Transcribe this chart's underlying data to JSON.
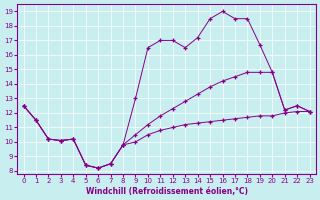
{
  "xlabel": "Windchill (Refroidissement éolien,°C)",
  "background_color": "#c8eef0",
  "line_color": "#880088",
  "xlim": [
    -0.5,
    23.5
  ],
  "ylim": [
    7.8,
    19.5
  ],
  "yticks": [
    8,
    9,
    10,
    11,
    12,
    13,
    14,
    15,
    16,
    17,
    18,
    19
  ],
  "xticks": [
    0,
    1,
    2,
    3,
    4,
    5,
    6,
    7,
    8,
    9,
    10,
    11,
    12,
    13,
    14,
    15,
    16,
    17,
    18,
    19,
    20,
    21,
    22,
    23
  ],
  "line1_x": [
    0,
    1,
    2,
    3,
    4,
    5,
    6,
    7,
    8,
    9,
    10,
    11,
    12,
    13,
    14,
    15,
    16,
    17,
    18,
    19,
    20,
    21,
    22,
    23
  ],
  "line1_y": [
    12.5,
    11.5,
    10.2,
    10.1,
    10.2,
    8.4,
    8.2,
    8.5,
    9.8,
    10.0,
    10.5,
    10.8,
    11.0,
    11.2,
    11.3,
    11.4,
    11.5,
    11.6,
    11.7,
    11.8,
    11.8,
    12.0,
    12.1,
    12.1
  ],
  "line2_x": [
    0,
    1,
    2,
    3,
    4,
    5,
    6,
    7,
    8,
    9,
    10,
    11,
    12,
    13,
    14,
    15,
    16,
    17,
    18,
    19,
    20,
    21,
    22,
    23
  ],
  "line2_y": [
    12.5,
    11.5,
    10.2,
    10.1,
    10.2,
    8.4,
    8.2,
    8.5,
    9.8,
    13.0,
    16.5,
    17.0,
    17.0,
    16.5,
    17.2,
    18.5,
    19.0,
    18.5,
    18.5,
    16.7,
    14.8,
    12.2,
    12.5,
    12.1
  ],
  "line3_x": [
    0,
    1,
    2,
    3,
    4,
    5,
    6,
    7,
    8,
    9,
    10,
    11,
    12,
    13,
    14,
    15,
    16,
    17,
    18,
    19,
    20,
    21,
    22,
    23
  ],
  "line3_y": [
    12.5,
    11.5,
    10.2,
    10.1,
    10.2,
    8.4,
    8.2,
    8.5,
    9.8,
    10.5,
    11.2,
    11.8,
    12.3,
    12.8,
    13.3,
    13.8,
    14.2,
    14.5,
    14.8,
    14.8,
    14.8,
    12.2,
    12.5,
    12.1
  ]
}
